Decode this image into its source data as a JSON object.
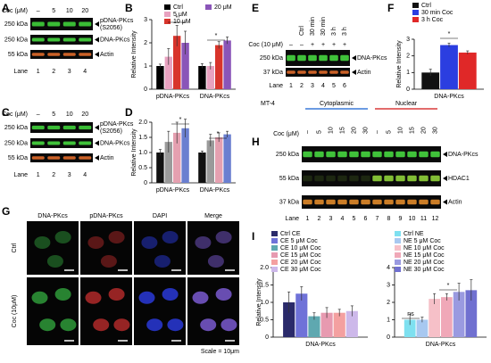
{
  "blots": [
    {
      "panel": "A",
      "header_label": "Coc (μM)",
      "lane_headers": [
        "–",
        "5",
        "10",
        "20"
      ],
      "bands": [
        {
          "kda": "250 kDa",
          "name": [
            "pDNA-PKcs",
            "(S2056)"
          ],
          "color": "#3fcf3a"
        },
        {
          "kda": "250 kDa",
          "name": [
            "DNA-PKcs"
          ],
          "color": "#46d63f"
        },
        {
          "kda": "55 kDa",
          "name": [
            "Actin"
          ],
          "color": "#e06a2a"
        }
      ],
      "lane_label": "Lane",
      "lanes": [
        "1",
        "2",
        "3",
        "4"
      ]
    },
    {
      "panel": "C",
      "header_label": "Coc (μM)",
      "lane_headers": [
        "–",
        "5",
        "10",
        "20"
      ],
      "bands": [
        {
          "kda": "250 kDa",
          "name": [
            "pDNA-PKcs",
            "(S2056)"
          ],
          "color": "#3fcf3a"
        },
        {
          "kda": "250 kDa",
          "name": [
            "DNA-PKcs"
          ],
          "color": "#46d63f"
        },
        {
          "kda": "55 kDa",
          "name": [
            "Actin"
          ],
          "color": "#e06a2a"
        }
      ],
      "lane_label": "Lane",
      "lanes": [
        "1",
        "2",
        "3",
        "4"
      ]
    },
    {
      "panel": "E",
      "header_label": "Coc (10 μM)",
      "conditions": [
        "Ctrl",
        "30 min",
        "30 min",
        "3 h",
        "3 h"
      ],
      "lane_headers": [
        "–",
        "–",
        "+",
        "+",
        "+",
        "+"
      ],
      "bands": [
        {
          "kda": "250 kDa",
          "name": [
            "DNA-PKcs"
          ],
          "color": "#46d63f"
        },
        {
          "kda": "37 kDa",
          "name": [
            "Actin"
          ],
          "color": "#e06a2a"
        }
      ],
      "lane_label": "Lane",
      "lanes": [
        "1",
        "2",
        "3",
        "4",
        "5",
        "6"
      ]
    },
    {
      "panel": "H",
      "cell_line": "MT-4",
      "fractions": [
        "Cytoplasmic",
        "Nuclear"
      ],
      "header_label": "Coc (μM)",
      "lane_headers": [
        "–",
        "5",
        "10",
        "15",
        "20",
        "30",
        "–",
        "5",
        "10",
        "15",
        "20",
        "30"
      ],
      "bands": [
        {
          "kda": "250 kDa",
          "name": [
            "DNA-PKcs"
          ],
          "color": "#46d63f"
        },
        {
          "kda": "55 kDa",
          "name": [
            "HDAC1"
          ],
          "color": "#8fd13a"
        },
        {
          "kda": "37 kDa",
          "name": [
            "Actin"
          ],
          "color": "#e08a2a"
        }
      ],
      "lane_label": "Lane",
      "lanes": [
        "1",
        "2",
        "3",
        "4",
        "5",
        "6",
        "7",
        "8",
        "9",
        "10",
        "11",
        "12"
      ]
    }
  ],
  "microscopy": {
    "panel": "G",
    "columns": [
      "DNA-PKcs",
      "pDNA-PKcs",
      "DAPI",
      "Merge"
    ],
    "rows": [
      "Ctrl",
      "Coc (10μM)"
    ],
    "scale": "Scale = 10μm"
  },
  "chart_data": [
    {
      "type": "bar",
      "panel": "B",
      "y_label": "Relative Intensity",
      "categories": [
        "pDNA-PKcs",
        "DNA-PKcs"
      ],
      "ylim": [
        0,
        3
      ],
      "yticks": [
        0,
        1,
        2,
        3
      ],
      "annotations": [
        "*",
        "*"
      ],
      "series": [
        {
          "name": "Ctrl",
          "color": "#000000",
          "values": [
            1.0,
            1.0
          ],
          "errors": [
            0.08,
            0.1
          ]
        },
        {
          "name": "5 μM",
          "color": "#e8a2c0",
          "values": [
            1.4,
            1.0
          ],
          "errors": [
            0.35,
            0.15
          ]
        },
        {
          "name": "10 μM",
          "color": "#d8342b",
          "values": [
            2.3,
            1.9
          ],
          "errors": [
            0.45,
            0.15
          ]
        },
        {
          "name": "20 μM",
          "color": "#8a55b8",
          "values": [
            2.0,
            2.1
          ],
          "errors": [
            0.5,
            0.15
          ]
        }
      ]
    },
    {
      "type": "bar",
      "panel": "D",
      "y_label": "Relative Intensity",
      "categories": [
        "pDNA-PKcs",
        "DNA-PKcs"
      ],
      "ylim": [
        0,
        2
      ],
      "yticks": [
        0,
        0.5,
        {
          "value": 1,
          "label": "1.0"
        },
        1.5,
        {
          "value": 2,
          "label": "2.0"
        }
      ],
      "annotations": [
        "*",
        "*"
      ],
      "series": [
        {
          "color": "#111111",
          "values": [
            1.0,
            1.0
          ],
          "errors": [
            0.1,
            0.05
          ]
        },
        {
          "color": "#9a9a9a",
          "values": [
            1.35,
            1.4
          ],
          "errors": [
            0.35,
            0.2
          ]
        },
        {
          "color": "#e5a0b0",
          "values": [
            1.65,
            1.5
          ],
          "errors": [
            0.35,
            0.15
          ]
        },
        {
          "color": "#6a7fd0",
          "values": [
            1.8,
            1.6
          ],
          "errors": [
            0.3,
            0.1
          ]
        }
      ]
    },
    {
      "type": "bar",
      "panel": "F",
      "y_label": "Relative Intensity",
      "categories": [
        "DNA-PKcs"
      ],
      "ylim": [
        0,
        3
      ],
      "yticks": [
        0,
        1,
        2,
        3
      ],
      "annotations": [
        "*"
      ],
      "series": [
        {
          "name": "Ctrl",
          "color": "#111111",
          "values": [
            1.0
          ],
          "errors": [
            0.2
          ]
        },
        {
          "name": "30 min Coc",
          "color": "#2b3ee0",
          "values": [
            2.65
          ],
          "errors": [
            0.12
          ]
        },
        {
          "name": "3 h Coc",
          "color": "#e02828",
          "values": [
            2.2
          ],
          "errors": [
            0.1
          ]
        }
      ]
    },
    {
      "type": "bar",
      "panel": "I",
      "y_label": "Relative Intensity",
      "categories": [
        "DNA-PKcs"
      ],
      "ylim": [
        0,
        2
      ],
      "yticks": [
        0,
        0.5,
        {
          "value": 1,
          "label": "1.0"
        },
        1.5,
        {
          "value": 2,
          "label": "2.0"
        }
      ],
      "annotations": [],
      "series": [
        {
          "name": "Ctrl CE",
          "color": "#2a2a6a",
          "values": [
            1.0
          ],
          "errors": [
            0.3
          ]
        },
        {
          "name": "CE 5 μM Coc",
          "color": "#6f72d8",
          "values": [
            1.25
          ],
          "errors": [
            0.2
          ]
        },
        {
          "name": "CE 10 μM Coc",
          "color": "#5fa8b0",
          "values": [
            0.6
          ],
          "errors": [
            0.1
          ]
        },
        {
          "name": "CE 15 μM Coc",
          "color": "#e79ab0",
          "values": [
            0.7
          ],
          "errors": [
            0.15
          ]
        },
        {
          "name": "CE 20 μM Coc",
          "color": "#f4a0a0",
          "values": [
            0.7
          ],
          "errors": [
            0.1
          ]
        },
        {
          "name": "CE 30 μM Coc",
          "color": "#cdb8ea",
          "values": [
            0.75
          ],
          "errors": [
            0.15
          ]
        }
      ]
    },
    {
      "type": "bar",
      "categories": [
        "DNA-PKcs"
      ],
      "ylim": [
        0,
        4
      ],
      "yticks": [
        0,
        1,
        2,
        3,
        4
      ],
      "annotations": [
        "ns",
        "*"
      ],
      "series": [
        {
          "name": "Ctrl NE",
          "color": "#7ee0f0",
          "values": [
            1.0
          ],
          "errors": [
            0.3
          ]
        },
        {
          "name": "NE 5 μM Coc",
          "color": "#a8c8f0",
          "values": [
            1.0
          ],
          "errors": [
            0.15
          ]
        },
        {
          "name": "NE 10 μM Coc",
          "color": "#f6c0c8",
          "values": [
            2.2
          ],
          "errors": [
            0.3
          ]
        },
        {
          "name": "NE 15 μM Coc",
          "color": "#f0a8b8",
          "values": [
            2.3
          ],
          "errors": [
            0.2
          ]
        },
        {
          "name": "NE 20 μM Coc",
          "color": "#9a9ae0",
          "values": [
            2.6
          ],
          "errors": [
            0.5
          ]
        },
        {
          "name": "NE 30 μM Coc",
          "color": "#7070d0",
          "values": [
            2.7
          ],
          "errors": [
            0.6
          ]
        }
      ]
    }
  ]
}
